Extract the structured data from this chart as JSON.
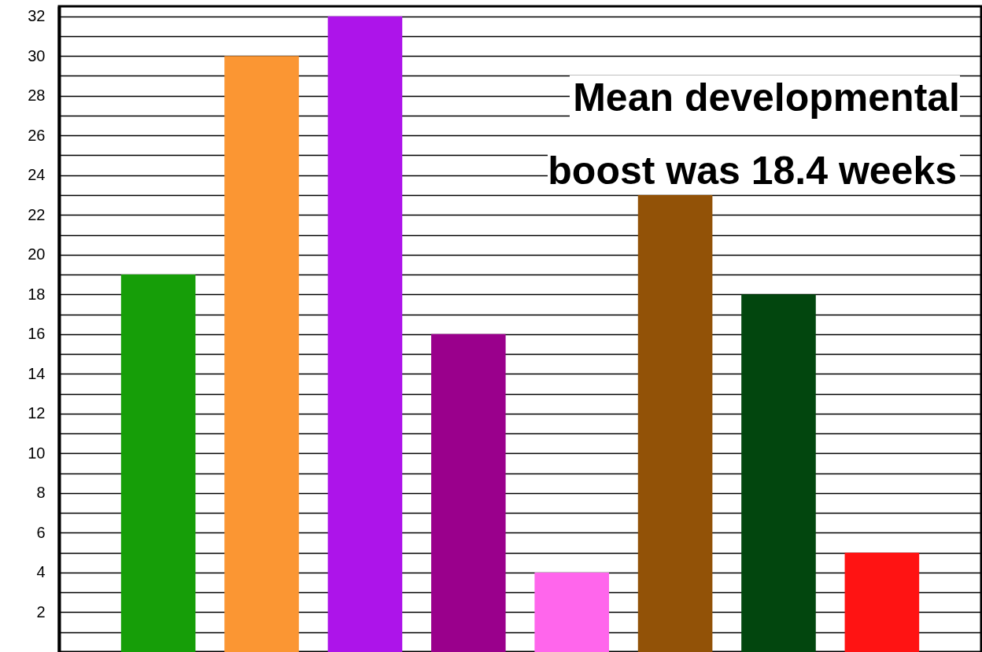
{
  "chart_data": {
    "type": "bar",
    "categories": [
      null,
      null,
      null,
      null,
      null,
      null,
      null,
      null
    ],
    "values": [
      19,
      30,
      32,
      16,
      4,
      23,
      18,
      5
    ],
    "colors": [
      "#169e08",
      "#fb9633",
      "#ad14ea",
      "#9a008c",
      "#ff66ec",
      "#925207",
      "#02460e",
      "#ff1313"
    ],
    "ylim": [
      0,
      32.5
    ],
    "yticks": [
      {
        "value": 1,
        "label": null
      },
      2,
      {
        "value": 3,
        "label": null
      },
      4,
      {
        "value": 5,
        "label": null
      },
      6,
      {
        "value": 7,
        "label": null
      },
      8,
      {
        "value": 9,
        "label": null
      },
      10,
      {
        "value": 11,
        "label": null
      },
      12,
      {
        "value": 13,
        "label": null
      },
      14,
      {
        "value": 15,
        "label": null
      },
      16,
      {
        "value": 17,
        "label": null
      },
      18,
      {
        "value": 19,
        "label": null
      },
      20,
      {
        "value": 21,
        "label": null
      },
      22,
      {
        "value": 23,
        "label": null
      },
      24,
      {
        "value": 25,
        "label": null
      },
      26,
      {
        "value": 27,
        "label": null
      },
      28,
      {
        "value": 29,
        "label": null
      },
      30,
      {
        "value": 31,
        "label": null
      },
      32
    ],
    "grid": true,
    "tick_labels": "y",
    "annotations": [
      "Mean developmental boost was 18.4 weeks"
    ]
  }
}
